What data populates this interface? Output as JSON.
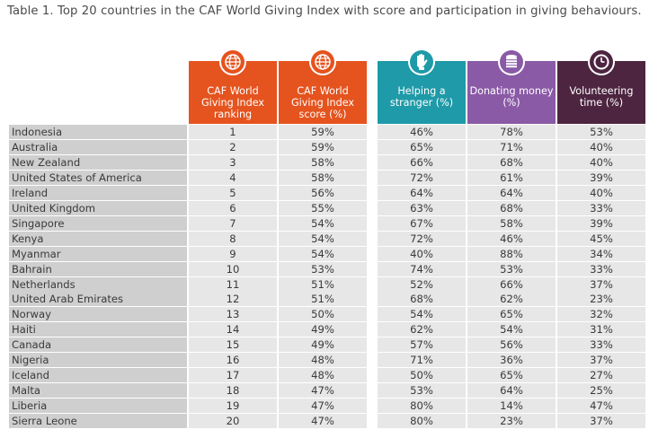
{
  "title": "Table 1. Top 20 countries in the CAF World Giving Index with score and participation in giving behaviours.",
  "headers": {
    "ranking": "CAF World Giving Index ranking",
    "score": "CAF World Giving Index score (%)",
    "helping": "Helping a stranger (%)",
    "donating": "Donating money (%)",
    "volunteering": "Volunteering time (%)"
  },
  "icons": {
    "ranking": "globe-icon",
    "score": "globe-icon",
    "helping": "raised-hand-icon",
    "donating": "coin-stack-icon",
    "volunteering": "clock-icon"
  },
  "colors": {
    "caf": "#e5531e",
    "helping": "#1e9aa8",
    "donating": "#8a5aa6",
    "volunteering": "#4d2540"
  },
  "rows": [
    {
      "country": "Indonesia",
      "rank": "1",
      "score": "59%",
      "helping": "46%",
      "donating": "78%",
      "volunteering": "53%"
    },
    {
      "country": "Australia",
      "rank": "2",
      "score": "59%",
      "helping": "65%",
      "donating": "71%",
      "volunteering": "40%"
    },
    {
      "country": "New Zealand",
      "rank": "3",
      "score": "58%",
      "helping": "66%",
      "donating": "68%",
      "volunteering": "40%"
    },
    {
      "country": "United States of America",
      "rank": "4",
      "score": "58%",
      "helping": "72%",
      "donating": "61%",
      "volunteering": "39%"
    },
    {
      "country": "Ireland",
      "rank": "5",
      "score": "56%",
      "helping": "64%",
      "donating": "64%",
      "volunteering": "40%"
    },
    {
      "country": "United Kingdom",
      "rank": "6",
      "score": "55%",
      "helping": "63%",
      "donating": "68%",
      "volunteering": "33%"
    },
    {
      "country": "Singapore",
      "rank": "7",
      "score": "54%",
      "helping": "67%",
      "donating": "58%",
      "volunteering": "39%"
    },
    {
      "country": "Kenya",
      "rank": "8",
      "score": "54%",
      "helping": "72%",
      "donating": "46%",
      "volunteering": "45%"
    },
    {
      "country": "Myanmar",
      "rank": "9",
      "score": "54%",
      "helping": "40%",
      "donating": "88%",
      "volunteering": "34%"
    },
    {
      "country": "Bahrain",
      "rank": "10",
      "score": "53%",
      "helping": "74%",
      "donating": "53%",
      "volunteering": "33%"
    },
    {
      "country": "Netherlands",
      "rank": "11",
      "score": "51%",
      "helping": "52%",
      "donating": "66%",
      "volunteering": "37%"
    },
    {
      "country": "United Arab Emirates",
      "rank": "12",
      "score": "51%",
      "helping": "68%",
      "donating": "62%",
      "volunteering": "23%"
    },
    {
      "country": "Norway",
      "rank": "13",
      "score": "50%",
      "helping": "54%",
      "donating": "65%",
      "volunteering": "32%"
    },
    {
      "country": "Haiti",
      "rank": "14",
      "score": "49%",
      "helping": "62%",
      "donating": "54%",
      "volunteering": "31%"
    },
    {
      "country": "Canada",
      "rank": "15",
      "score": "49%",
      "helping": "57%",
      "donating": "56%",
      "volunteering": "33%"
    },
    {
      "country": "Nigeria",
      "rank": "16",
      "score": "48%",
      "helping": "71%",
      "donating": "36%",
      "volunteering": "37%"
    },
    {
      "country": "Iceland",
      "rank": "17",
      "score": "48%",
      "helping": "50%",
      "donating": "65%",
      "volunteering": "27%"
    },
    {
      "country": "Malta",
      "rank": "18",
      "score": "47%",
      "helping": "53%",
      "donating": "64%",
      "volunteering": "25%"
    },
    {
      "country": "Liberia",
      "rank": "19",
      "score": "47%",
      "helping": "80%",
      "donating": "14%",
      "volunteering": "47%"
    },
    {
      "country": "Sierra Leone",
      "rank": "20",
      "score": "47%",
      "helping": "80%",
      "donating": "23%",
      "volunteering": "37%"
    }
  ]
}
